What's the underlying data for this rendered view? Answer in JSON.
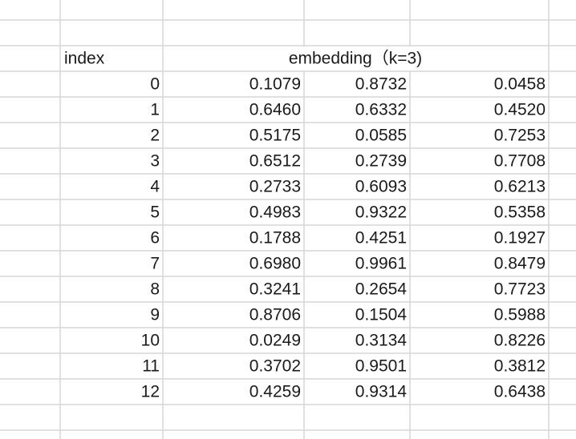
{
  "table": {
    "header": {
      "index": "index",
      "embedding": "embedding（k=3)"
    },
    "rows": [
      [
        "0",
        "0.1079",
        "0.8732",
        "0.0458"
      ],
      [
        "1",
        "0.6460",
        "0.6332",
        "0.4520"
      ],
      [
        "2",
        "0.5175",
        "0.0585",
        "0.7253"
      ],
      [
        "3",
        "0.6512",
        "0.2739",
        "0.7708"
      ],
      [
        "4",
        "0.2733",
        "0.6093",
        "0.6213"
      ],
      [
        "5",
        "0.4983",
        "0.9322",
        "0.5358"
      ],
      [
        "6",
        "0.1788",
        "0.4251",
        "0.1927"
      ],
      [
        "7",
        "0.6980",
        "0.9961",
        "0.8479"
      ],
      [
        "8",
        "0.3241",
        "0.2654",
        "0.7723"
      ],
      [
        "9",
        "0.8706",
        "0.1504",
        "0.5988"
      ],
      [
        "10",
        "0.0249",
        "0.3134",
        "0.8226"
      ],
      [
        "11",
        "0.3702",
        "0.9501",
        "0.3812"
      ],
      [
        "12",
        "0.4259",
        "0.9314",
        "0.6438"
      ]
    ]
  }
}
